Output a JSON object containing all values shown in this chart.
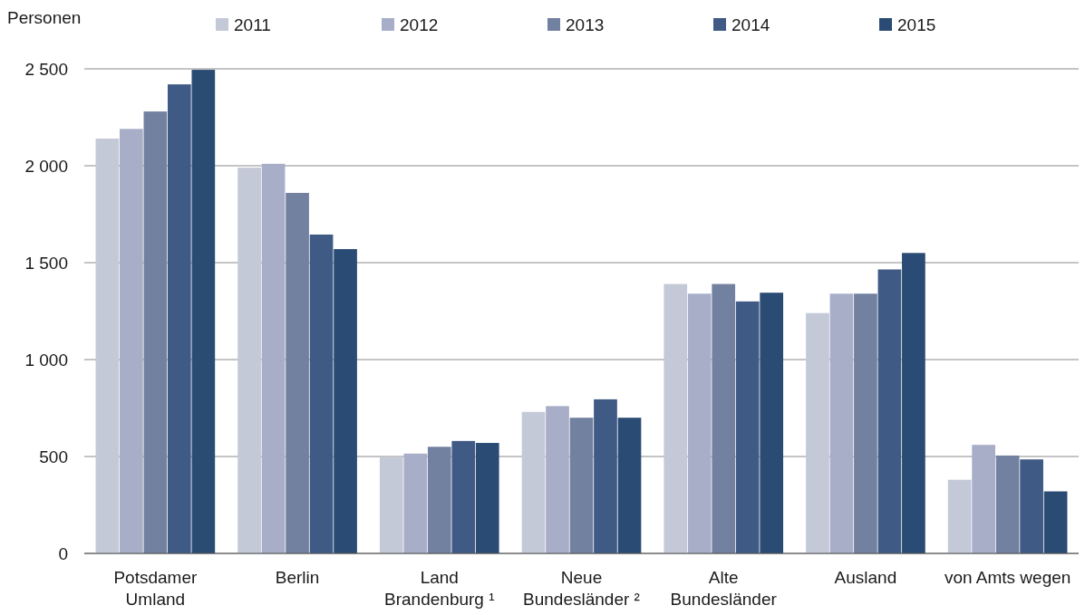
{
  "chart_data": {
    "type": "bar",
    "ylabel": "Personen",
    "categories": [
      "Potsdamer\nUmland",
      "Berlin",
      "Land\nBrandenburg ¹",
      "Neue\nBundesländer ²",
      "Alte\nBundesländer",
      "Ausland",
      "von Amts wegen"
    ],
    "series": [
      {
        "name": "2011",
        "color": "#c4c9d8",
        "values": [
          2140,
          1990,
          495,
          730,
          1390,
          1240,
          380
        ]
      },
      {
        "name": "2012",
        "color": "#a9aec8",
        "values": [
          2190,
          2010,
          515,
          760,
          1340,
          1340,
          560
        ]
      },
      {
        "name": "2013",
        "color": "#7281a0",
        "values": [
          2280,
          1860,
          550,
          700,
          1390,
          1340,
          505
        ]
      },
      {
        "name": "2014",
        "color": "#3f5a85",
        "values": [
          2420,
          1645,
          580,
          795,
          1300,
          1465,
          485
        ]
      },
      {
        "name": "2015",
        "color": "#2a4b73",
        "values": [
          2495,
          1570,
          570,
          700,
          1345,
          1550,
          320
        ]
      }
    ],
    "ylim": [
      0,
      2500
    ],
    "yticks": [
      0,
      {
        "value": 500,
        "label": "500"
      },
      {
        "value": 1000,
        "label": "1 000"
      },
      {
        "value": 1500,
        "label": "1 500"
      },
      {
        "value": 2000,
        "label": "2 000"
      },
      {
        "value": 2500,
        "label": "2 500"
      }
    ],
    "grid": "y",
    "legend": "top"
  }
}
